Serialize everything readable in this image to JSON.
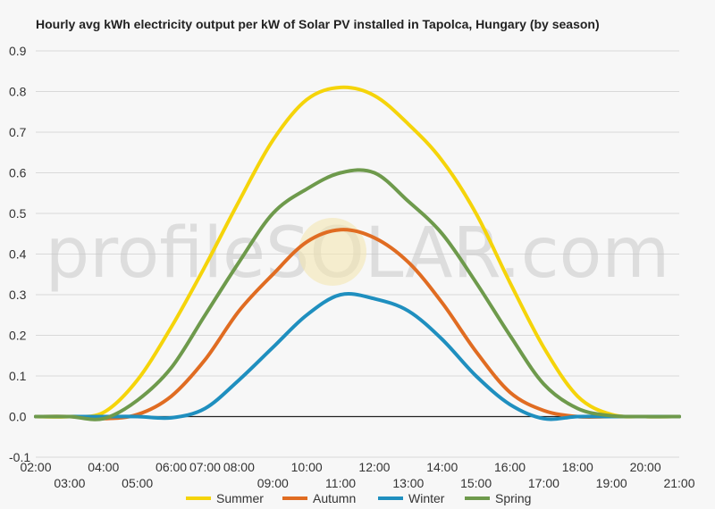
{
  "chart_data": {
    "type": "line",
    "title": "Hourly avg kWh electricity output per kW of Solar PV installed in Tapolca, Hungary (by season)",
    "watermark": "profileSOLAR.com",
    "x_upper_ticks": [
      "02:00",
      "04:00",
      "06:00",
      "07:00",
      "08:00",
      "10:00",
      "12:00",
      "14:00",
      "16:00",
      "18:00",
      "20:00"
    ],
    "x_lower_ticks": [
      "03:00",
      "05:00",
      "09:00",
      "11:00",
      "13:00",
      "15:00",
      "17:00",
      "19:00",
      "21:00"
    ],
    "ytick_labels": [
      "0.9",
      "0.8",
      "0.7",
      "0.6",
      "0.5",
      "0.4",
      "0.3",
      "0.2",
      "0.1",
      "0.0",
      "-0.1"
    ],
    "ylim": [
      -0.1,
      0.9
    ],
    "xlim": [
      2,
      21
    ],
    "x": [
      2,
      3,
      4,
      5,
      6,
      7,
      8,
      9,
      10,
      11,
      12,
      13,
      14,
      15,
      16,
      17,
      18,
      19,
      20,
      21
    ],
    "series": [
      {
        "name": "Summer",
        "color": "#f5d40a",
        "values": [
          0,
          0,
          0.01,
          0.09,
          0.22,
          0.37,
          0.53,
          0.68,
          0.78,
          0.81,
          0.79,
          0.72,
          0.63,
          0.5,
          0.33,
          0.17,
          0.05,
          0.005,
          0,
          0
        ]
      },
      {
        "name": "Autumn",
        "color": "#e06c22",
        "values": [
          0,
          0,
          -0.005,
          0.005,
          0.05,
          0.14,
          0.26,
          0.35,
          0.43,
          0.46,
          0.44,
          0.38,
          0.28,
          0.16,
          0.06,
          0.015,
          0,
          0,
          0,
          0
        ]
      },
      {
        "name": "Winter",
        "color": "#1f8fbf",
        "values": [
          0,
          0,
          0,
          0,
          -0.003,
          0.02,
          0.09,
          0.17,
          0.25,
          0.3,
          0.29,
          0.26,
          0.19,
          0.1,
          0.03,
          -0.005,
          0,
          0,
          0,
          0
        ]
      },
      {
        "name": "Spring",
        "color": "#6e9a4c",
        "values": [
          0,
          0,
          -0.005,
          0.04,
          0.12,
          0.25,
          0.38,
          0.5,
          0.56,
          0.6,
          0.6,
          0.53,
          0.45,
          0.33,
          0.2,
          0.08,
          0.02,
          0.002,
          0,
          0
        ]
      }
    ],
    "legend_position": "bottom",
    "grid": true
  }
}
